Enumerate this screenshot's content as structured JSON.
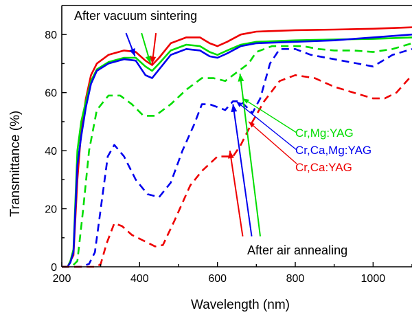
{
  "chart_data": {
    "type": "line",
    "title": "",
    "xlabel": "Wavelength (nm)",
    "ylabel": "Transmittance (%)",
    "xlim": [
      200,
      1100
    ],
    "ylim": [
      0,
      90
    ],
    "x_ticks": [
      200,
      400,
      600,
      800,
      1000
    ],
    "y_ticks": [
      0,
      20,
      40,
      60,
      80
    ],
    "grid": false,
    "legend_position": "right",
    "legend": [
      {
        "label": "Cr,Mg:YAG",
        "color": "#00dd00"
      },
      {
        "label": "Cr,Ca,Mg:YAG",
        "color": "#0000ee"
      },
      {
        "label": "Cr,Ca:YAG",
        "color": "#ee0000"
      }
    ],
    "annotations": {
      "vacuum": "After vacuum sintering",
      "air": "After air annealing"
    },
    "series": [
      {
        "name": "Cr,Ca:YAG",
        "group": "After vacuum sintering",
        "style": "solid",
        "color": "#ee0000",
        "points": [
          [
            200,
            0
          ],
          [
            215,
            0
          ],
          [
            222,
            2
          ],
          [
            230,
            4
          ],
          [
            240,
            30
          ],
          [
            250,
            47
          ],
          [
            262,
            58
          ],
          [
            275,
            66
          ],
          [
            290,
            70
          ],
          [
            320,
            73
          ],
          [
            360,
            74.5
          ],
          [
            390,
            74
          ],
          [
            415,
            71
          ],
          [
            432,
            69.5
          ],
          [
            450,
            72
          ],
          [
            480,
            77
          ],
          [
            520,
            79
          ],
          [
            555,
            79
          ],
          [
            580,
            77
          ],
          [
            600,
            76
          ],
          [
            625,
            77.5
          ],
          [
            660,
            80
          ],
          [
            700,
            81
          ],
          [
            800,
            81.5
          ],
          [
            900,
            81.7
          ],
          [
            1000,
            82
          ],
          [
            1100,
            82.5
          ]
        ]
      },
      {
        "name": "Cr,Mg:YAG",
        "group": "After vacuum sintering",
        "style": "solid",
        "color": "#00dd00",
        "points": [
          [
            200,
            0
          ],
          [
            215,
            0
          ],
          [
            222,
            2
          ],
          [
            230,
            6
          ],
          [
            240,
            40
          ],
          [
            250,
            50
          ],
          [
            262,
            57
          ],
          [
            275,
            64
          ],
          [
            290,
            68
          ],
          [
            320,
            70.5
          ],
          [
            360,
            72
          ],
          [
            390,
            72
          ],
          [
            415,
            69
          ],
          [
            432,
            67.5
          ],
          [
            450,
            70
          ],
          [
            480,
            74.5
          ],
          [
            520,
            76.5
          ],
          [
            555,
            76
          ],
          [
            580,
            74
          ],
          [
            600,
            73
          ],
          [
            625,
            74.5
          ],
          [
            660,
            76.5
          ],
          [
            700,
            77.5
          ],
          [
            800,
            78
          ],
          [
            900,
            78.3
          ],
          [
            1000,
            78.5
          ],
          [
            1100,
            79
          ]
        ]
      },
      {
        "name": "Cr,Ca,Mg:YAG",
        "group": "After vacuum sintering",
        "style": "solid",
        "color": "#0000ee",
        "points": [
          [
            200,
            0
          ],
          [
            215,
            0
          ],
          [
            222,
            1.5
          ],
          [
            230,
            5
          ],
          [
            240,
            35
          ],
          [
            250,
            45
          ],
          [
            262,
            55
          ],
          [
            275,
            63
          ],
          [
            290,
            67.5
          ],
          [
            320,
            70
          ],
          [
            360,
            71.5
          ],
          [
            390,
            71
          ],
          [
            415,
            66
          ],
          [
            432,
            65
          ],
          [
            450,
            68
          ],
          [
            480,
            73
          ],
          [
            520,
            75
          ],
          [
            555,
            74.5
          ],
          [
            580,
            72.5
          ],
          [
            600,
            72
          ],
          [
            625,
            73.5
          ],
          [
            660,
            76
          ],
          [
            700,
            77
          ],
          [
            800,
            77.5
          ],
          [
            900,
            78
          ],
          [
            1000,
            79
          ],
          [
            1100,
            80
          ]
        ]
      },
      {
        "name": "Cr,Mg:YAG",
        "group": "After air annealing",
        "style": "dashed",
        "color": "#00dd00",
        "points": [
          [
            200,
            0
          ],
          [
            225,
            0
          ],
          [
            240,
            2
          ],
          [
            255,
            20
          ],
          [
            270,
            40
          ],
          [
            290,
            54
          ],
          [
            320,
            59
          ],
          [
            350,
            59
          ],
          [
            380,
            56
          ],
          [
            410,
            52
          ],
          [
            440,
            52
          ],
          [
            480,
            56
          ],
          [
            520,
            61
          ],
          [
            560,
            65
          ],
          [
            590,
            65
          ],
          [
            620,
            64
          ],
          [
            650,
            67
          ],
          [
            680,
            70
          ],
          [
            700,
            74
          ],
          [
            740,
            76
          ],
          [
            780,
            76
          ],
          [
            820,
            76
          ],
          [
            860,
            75
          ],
          [
            900,
            74.5
          ],
          [
            950,
            74.5
          ],
          [
            1000,
            74
          ],
          [
            1050,
            75
          ],
          [
            1100,
            77
          ]
        ]
      },
      {
        "name": "Cr,Ca,Mg:YAG",
        "group": "After air annealing",
        "style": "dashed",
        "color": "#0000ee",
        "points": [
          [
            200,
            0
          ],
          [
            250,
            0
          ],
          [
            270,
            1
          ],
          [
            285,
            5
          ],
          [
            300,
            20
          ],
          [
            318,
            38
          ],
          [
            335,
            42
          ],
          [
            360,
            38
          ],
          [
            390,
            30
          ],
          [
            420,
            25
          ],
          [
            450,
            24
          ],
          [
            480,
            29
          ],
          [
            510,
            40
          ],
          [
            540,
            49
          ],
          [
            560,
            56
          ],
          [
            580,
            56
          ],
          [
            600,
            55
          ],
          [
            620,
            54
          ],
          [
            640,
            57
          ],
          [
            660,
            57
          ],
          [
            690,
            53
          ],
          [
            710,
            58
          ],
          [
            735,
            70
          ],
          [
            760,
            75
          ],
          [
            800,
            75
          ],
          [
            840,
            73
          ],
          [
            880,
            72
          ],
          [
            920,
            71
          ],
          [
            960,
            70
          ],
          [
            1000,
            69
          ],
          [
            1050,
            73
          ],
          [
            1100,
            75
          ]
        ]
      },
      {
        "name": "Cr,Ca:YAG",
        "group": "After air annealing",
        "style": "dashed",
        "color": "#ee0000",
        "points": [
          [
            200,
            0
          ],
          [
            290,
            0
          ],
          [
            300,
            1
          ],
          [
            315,
            8
          ],
          [
            335,
            15
          ],
          [
            355,
            14
          ],
          [
            380,
            11
          ],
          [
            410,
            9
          ],
          [
            440,
            7
          ],
          [
            460,
            7.5
          ],
          [
            490,
            16
          ],
          [
            530,
            28
          ],
          [
            560,
            33
          ],
          [
            600,
            38
          ],
          [
            640,
            38
          ],
          [
            660,
            42
          ],
          [
            690,
            50
          ],
          [
            720,
            57
          ],
          [
            760,
            64
          ],
          [
            800,
            66
          ],
          [
            850,
            65
          ],
          [
            900,
            62
          ],
          [
            950,
            60
          ],
          [
            1000,
            58
          ],
          [
            1030,
            58
          ],
          [
            1060,
            60
          ],
          [
            1100,
            66
          ]
        ]
      }
    ]
  }
}
